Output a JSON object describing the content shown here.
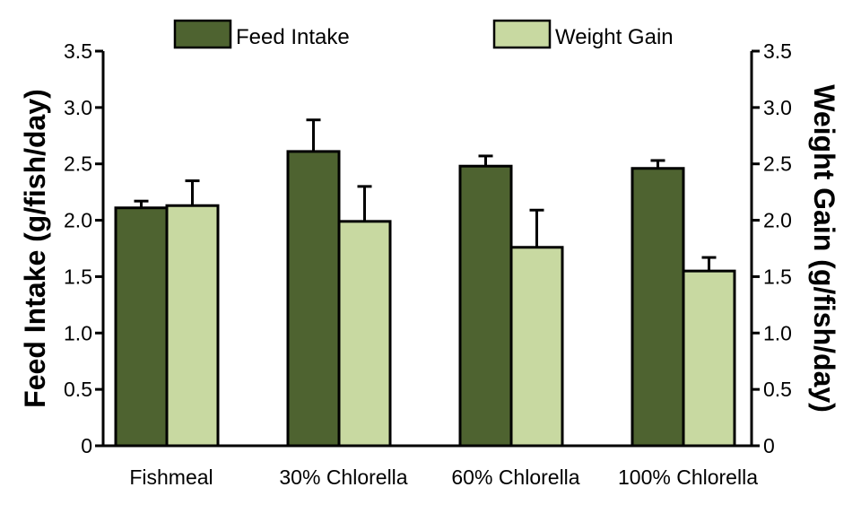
{
  "chart_data": {
    "type": "bar",
    "categories": [
      "Fishmeal",
      "30% Chlorella",
      "60% Chlorella",
      "100% Chlorella"
    ],
    "series": [
      {
        "name": "Feed Intake",
        "color": "#4e6330",
        "values": [
          2.11,
          2.61,
          2.48,
          2.46
        ],
        "error": [
          0.06,
          0.28,
          0.09,
          0.07
        ]
      },
      {
        "name": "Weight Gain",
        "color": "#c8d9a1",
        "values": [
          2.13,
          1.99,
          1.76,
          1.55
        ],
        "error": [
          0.22,
          0.31,
          0.33,
          0.12
        ]
      }
    ],
    "ylabel": "Feed Intake (g/fish/day)",
    "y2label": "Weight Gain (g/fish/day)",
    "ylim": [
      0,
      3.5
    ],
    "y2lim": [
      0,
      3.5
    ],
    "yticks": [
      "0",
      "0.5",
      "1.0",
      "1.5",
      "2.0",
      "2.5",
      "3.0",
      "3.5"
    ],
    "grid": false,
    "legend": "top"
  }
}
